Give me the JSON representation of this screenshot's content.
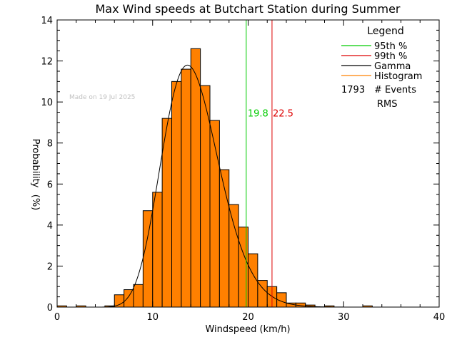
{
  "chart_data": {
    "type": "bar",
    "title": "Max Wind speeds at Butchart Station during Summer",
    "xlabel": "Windspeed (km/h)",
    "ylabel_line1": "Probability",
    "ylabel_line2": "(%)",
    "xlim": [
      0,
      40
    ],
    "ylim": [
      0,
      14
    ],
    "x_ticks": [
      0,
      10,
      20,
      30,
      40
    ],
    "y_ticks": [
      0,
      2,
      4,
      6,
      8,
      10,
      12,
      14
    ],
    "bin_width": 1,
    "histogram_bins": [
      {
        "x0": 0,
        "value": 0.06
      },
      {
        "x0": 2,
        "value": 0.06
      },
      {
        "x0": 5,
        "value": 0.06
      },
      {
        "x0": 6,
        "value": 0.6
      },
      {
        "x0": 7,
        "value": 0.85
      },
      {
        "x0": 8,
        "value": 1.1
      },
      {
        "x0": 9,
        "value": 4.7
      },
      {
        "x0": 10,
        "value": 5.6
      },
      {
        "x0": 11,
        "value": 9.2
      },
      {
        "x0": 12,
        "value": 11.0
      },
      {
        "x0": 13,
        "value": 11.6
      },
      {
        "x0": 14,
        "value": 12.6
      },
      {
        "x0": 15,
        "value": 10.8
      },
      {
        "x0": 16,
        "value": 9.1
      },
      {
        "x0": 17,
        "value": 6.7
      },
      {
        "x0": 18,
        "value": 5.0
      },
      {
        "x0": 19,
        "value": 3.9
      },
      {
        "x0": 20,
        "value": 2.6
      },
      {
        "x0": 21,
        "value": 1.3
      },
      {
        "x0": 22,
        "value": 1.0
      },
      {
        "x0": 23,
        "value": 0.7
      },
      {
        "x0": 24,
        "value": 0.2
      },
      {
        "x0": 25,
        "value": 0.2
      },
      {
        "x0": 26,
        "value": 0.1
      },
      {
        "x0": 28,
        "value": 0.06
      },
      {
        "x0": 32,
        "value": 0.06
      }
    ],
    "gamma_curve": {
      "shape": 22,
      "scale": 0.65,
      "peak_percent": 11.8
    },
    "p95": {
      "value": 19.8,
      "label": "19.8",
      "color": "#00cc00"
    },
    "p99": {
      "value": 22.5,
      "label": "22.5",
      "color": "#dd0000"
    },
    "histogram_color": "#ff8000",
    "legend": {
      "title": "Legend",
      "placement": "top-right",
      "items": [
        {
          "label": "95th %",
          "color": "#00cc00"
        },
        {
          "label": "99th %",
          "color": "#dd0000"
        },
        {
          "label": "Gamma",
          "color": "#000000"
        },
        {
          "label": "Histogram",
          "color": "#ff8000"
        }
      ],
      "events_count": "1793",
      "events_label": "# Events",
      "rms_label": "RMS"
    },
    "watermark": "Made on 19 Jul 2025"
  }
}
